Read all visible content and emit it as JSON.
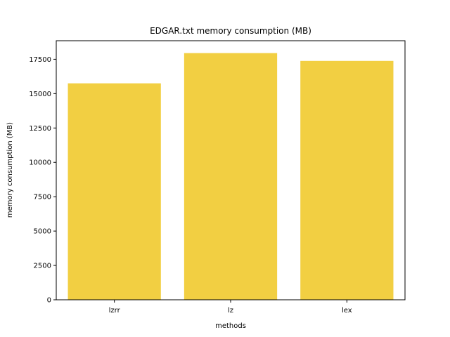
{
  "chart_data": {
    "type": "bar",
    "title": "EDGAR.txt memory consumption (MB)",
    "xlabel": "methods",
    "ylabel": "memory consumption (MB)",
    "categories": [
      "lzrr",
      "lz",
      "lex"
    ],
    "values": [
      15750,
      17950,
      17380
    ],
    "ylim": [
      0,
      18850
    ],
    "yticks": [
      0,
      2500,
      5000,
      7500,
      10000,
      12500,
      15000,
      17500
    ],
    "bar_color": "#f2cf42",
    "grid": false,
    "legend": "none"
  }
}
